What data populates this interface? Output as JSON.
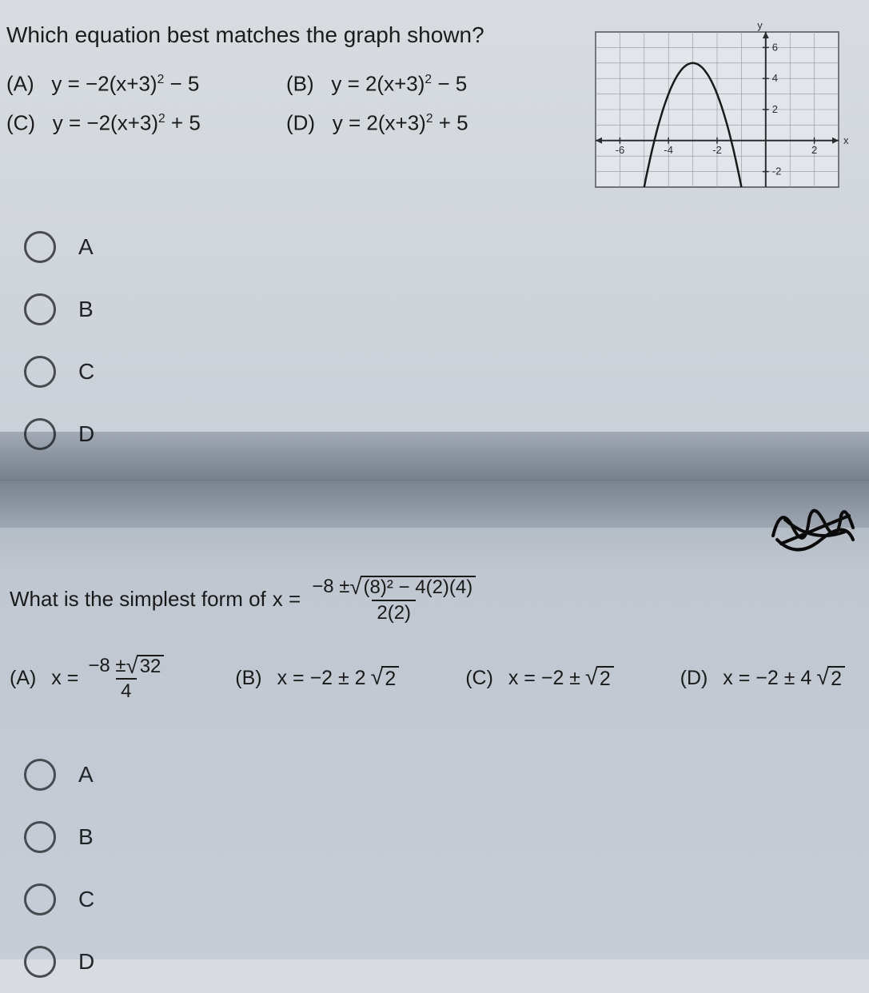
{
  "q1": {
    "prompt": "Which equation best matches the graph shown?",
    "choices": {
      "a_label": "(A)",
      "a_eq_pre": "y = −2(x+3)",
      "a_eq_post": " − 5",
      "b_label": "(B)",
      "b_eq_pre": "y = 2(x+3)",
      "b_eq_post": " − 5",
      "c_label": "(C)",
      "c_eq_pre": "y = −2(x+3)",
      "c_eq_post": " + 5",
      "d_label": "(D)",
      "d_eq_pre": "y = 2(x+3)",
      "d_eq_post": " + 5",
      "exp": "2"
    },
    "radios": {
      "a": "A",
      "b": "B",
      "c": "C",
      "d": "D"
    },
    "graph": {
      "xmin": -7,
      "xmax": 3,
      "ymin": -3,
      "ymax": 7,
      "xticks": [
        -6,
        -4,
        -2,
        2
      ],
      "yticks": [
        -2,
        2,
        4,
        6
      ],
      "xtick_labels": [
        "-6",
        "-4",
        "-2",
        "2"
      ],
      "ytick_labels": [
        "-2",
        "2",
        "4",
        "6"
      ],
      "grid_color": "#8e949c",
      "axis_color": "#2a2c30",
      "curve_color": "#1a1a1a",
      "bg_color": "#e2e6eb",
      "parabola": {
        "a": -2,
        "h": -3,
        "k": 5
      },
      "xlabel": "x",
      "ylabel": "y"
    }
  },
  "q2": {
    "prompt_pre": "What is the simplest form of ",
    "var": "x = ",
    "main_num_pre": "−8 ± ",
    "main_rad": "(8)² − 4(2)(4)",
    "main_den": "2(2)",
    "choices": {
      "a_label": "(A)",
      "a_var": "x = ",
      "a_num_pre": "−8 ± ",
      "a_rad": "32",
      "a_den": "4",
      "b_label": "(B)",
      "b_text_pre": "x = −2 ± 2",
      "b_rad": "2",
      "c_label": "(C)",
      "c_text_pre": "x = −2 ± ",
      "c_rad": "2",
      "d_label": "(D)",
      "d_text_pre": "x = −2 ± 4",
      "d_rad": "2"
    },
    "radios": {
      "a": "A",
      "b": "B",
      "c": "C",
      "d": "D"
    }
  },
  "colors": {
    "text": "#1a1a1a",
    "radio_border": "#474b50"
  }
}
